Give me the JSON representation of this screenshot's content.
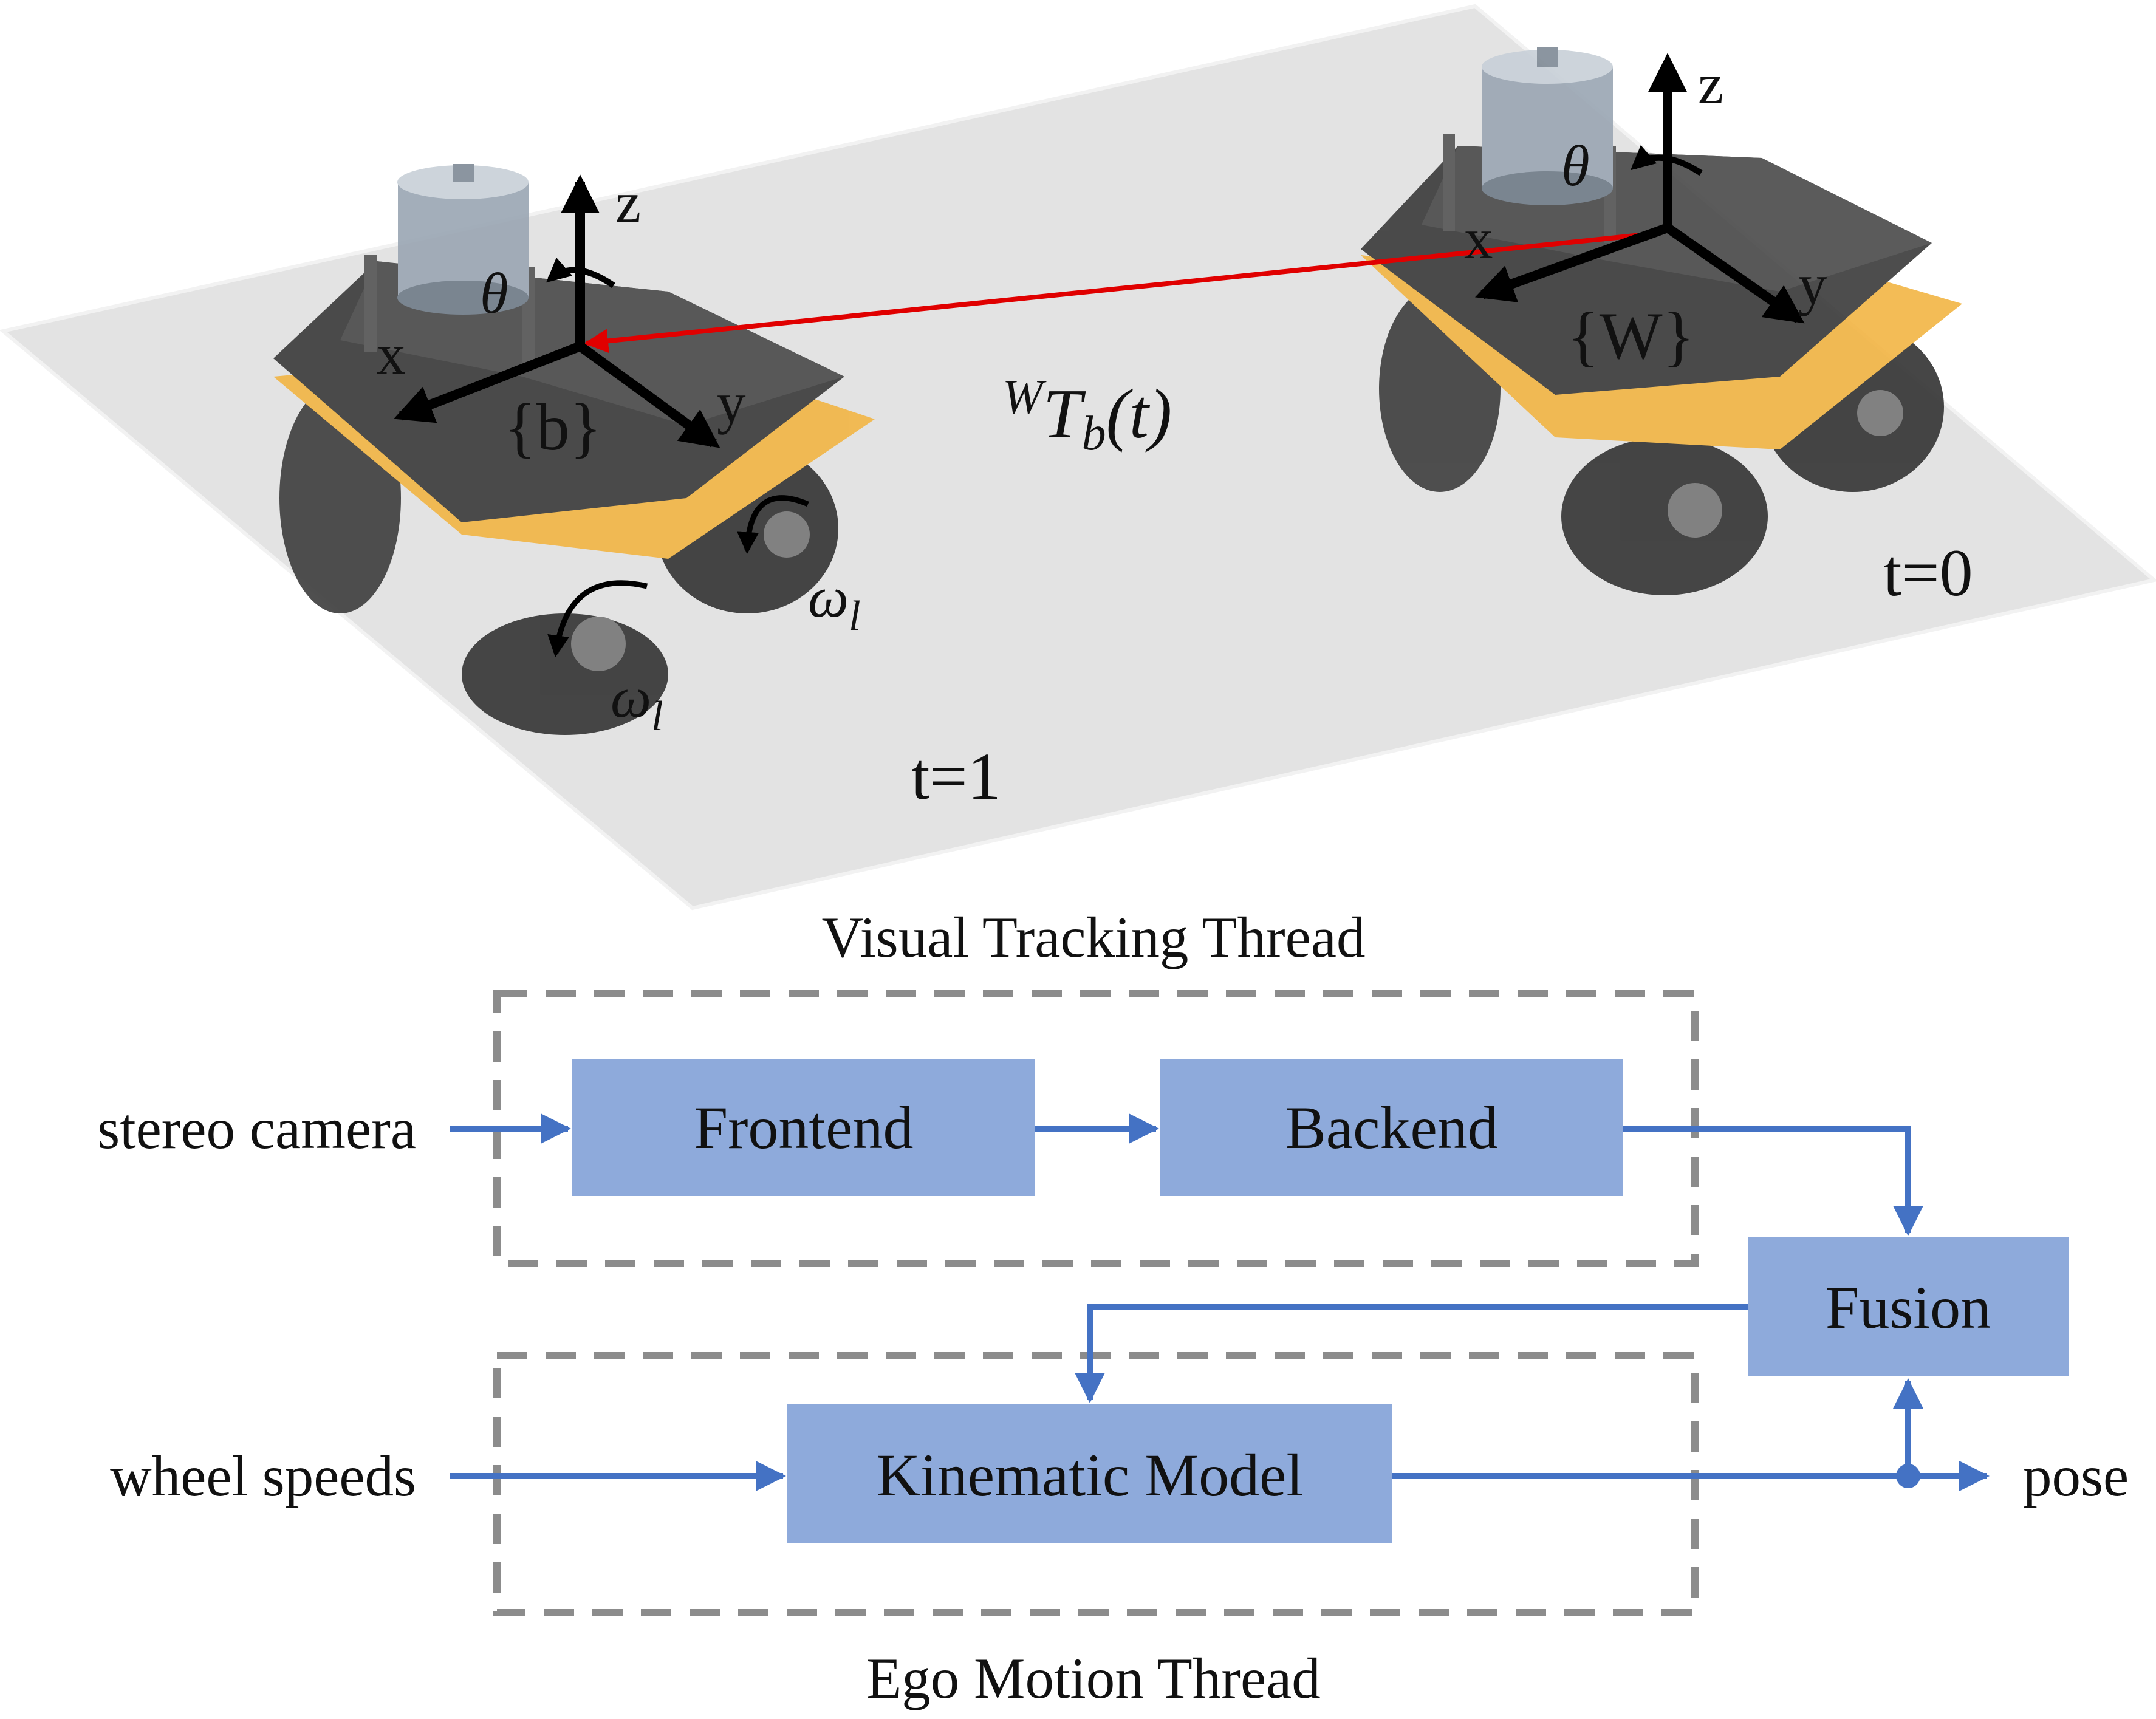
{
  "colors": {
    "box_fill": "#8eaadb",
    "arrow": "#4472c4",
    "dashed_border": "#8c8c8c",
    "transform_arrow": "#e00000",
    "plane": "#e3e3e3",
    "robot_body": "#3a3a3a",
    "robot_accent": "#f2b544",
    "lidar": "#9aa6b3"
  },
  "scene": {
    "robot_left": {
      "frame_label": "{b}",
      "axis_x": "x",
      "axis_y": "y",
      "axis_z": "z",
      "rotation": "θ",
      "wheel_speed_1": "ω",
      "wheel_speed_1_sub": "l",
      "wheel_speed_2": "ω",
      "wheel_speed_2_sub": "l",
      "time_label": "t=1"
    },
    "robot_right": {
      "frame_label": "{W}",
      "axis_x": "x",
      "axis_y": "y",
      "axis_z": "z",
      "rotation": "θ",
      "time_label": "t=0"
    },
    "transform": {
      "superscript": "W",
      "symbol": "T",
      "subscript": "b",
      "argument": "(t)"
    }
  },
  "pipeline": {
    "visual_thread_title": "Visual Tracking Thread",
    "ego_thread_title": "Ego Motion Thread",
    "inputs": {
      "camera": "stereo camera",
      "wheels": "wheel speeds"
    },
    "boxes": {
      "frontend": "Frontend",
      "backend": "Backend",
      "fusion": "Fusion",
      "kinematic": "Kinematic Model"
    },
    "output": "pose"
  }
}
